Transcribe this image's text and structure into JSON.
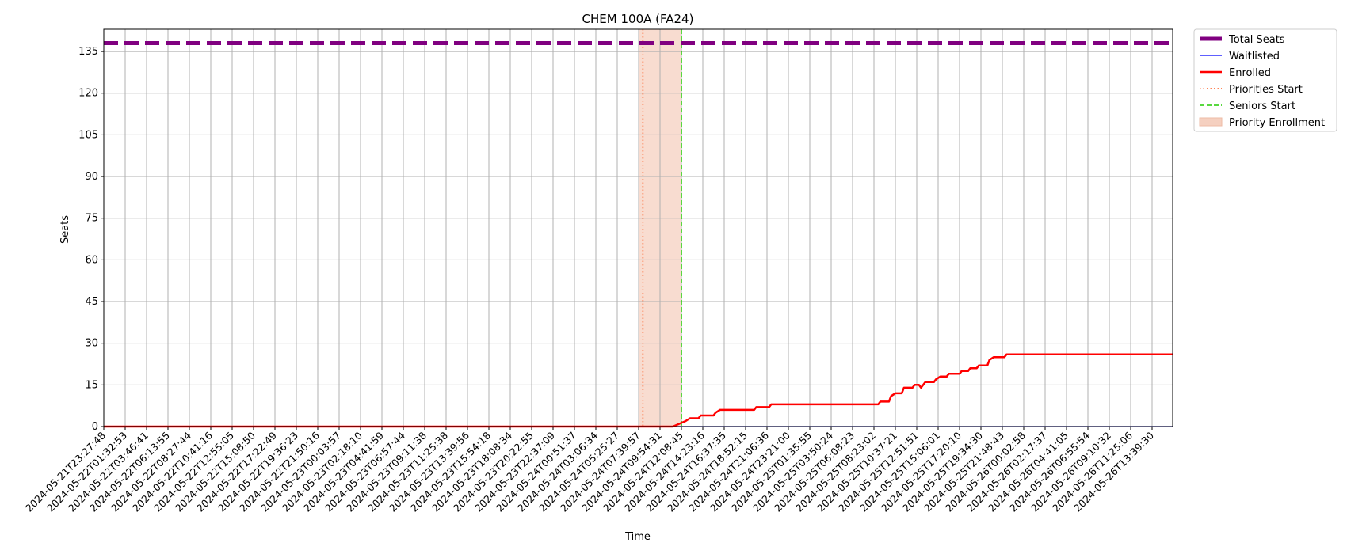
{
  "chart_data": {
    "type": "line",
    "title": "CHEM 100A (FA24)",
    "xlabel": "Time",
    "ylabel": "Seats",
    "ylim": [
      0,
      143
    ],
    "y_ticks": [
      0,
      15,
      30,
      45,
      60,
      75,
      90,
      105,
      120,
      135
    ],
    "x_tick_labels": [
      "2024-05-21T23:27:48",
      "2024-05-22T01:32:53",
      "2024-05-22T03:46:41",
      "2024-05-22T06:13:55",
      "2024-05-22T08:27:44",
      "2024-05-22T10:41:16",
      "2024-05-22T12:55:05",
      "2024-05-22T15:08:50",
      "2024-05-22T17:22:49",
      "2024-05-22T19:36:23",
      "2024-05-22T21:50:16",
      "2024-05-23T00:03:57",
      "2024-05-23T02:18:10",
      "2024-05-23T04:41:59",
      "2024-05-23T06:57:44",
      "2024-05-23T09:11:38",
      "2024-05-23T11:25:38",
      "2024-05-23T13:39:56",
      "2024-05-23T15:54:18",
      "2024-05-23T18:08:34",
      "2024-05-23T20:22:55",
      "2024-05-23T22:37:09",
      "2024-05-24T00:51:37",
      "2024-05-24T03:06:34",
      "2024-05-24T05:25:27",
      "2024-05-24T07:39:57",
      "2024-05-24T09:54:31",
      "2024-05-24T12:08:45",
      "2024-05-24T14:23:16",
      "2024-05-24T16:37:35",
      "2024-05-24T18:52:15",
      "2024-05-24T21:06:36",
      "2024-05-24T23:21:00",
      "2024-05-25T01:35:55",
      "2024-05-25T03:50:24",
      "2024-05-25T06:08:23",
      "2024-05-25T08:23:02",
      "2024-05-25T10:37:21",
      "2024-05-25T12:51:51",
      "2024-05-25T15:06:01",
      "2024-05-25T17:20:10",
      "2024-05-25T19:34:30",
      "2024-05-25T21:48:43",
      "2024-05-26T00:02:58",
      "2024-05-26T02:17:37",
      "2024-05-26T04:41:05",
      "2024-05-26T06:55:54",
      "2024-05-26T09:10:32",
      "2024-05-26T11:25:06",
      "2024-05-26T13:39:30"
    ],
    "grid": true,
    "legend_position": "outside-top-right",
    "series": [
      {
        "name": "Total Seats",
        "style": "dashed-thick",
        "color": "#800080",
        "constant": 138
      },
      {
        "name": "Waitlisted",
        "style": "solid-thin",
        "color": "#0000ff",
        "constant": 0
      },
      {
        "name": "Enrolled",
        "style": "solid",
        "color": "#ff0000",
        "points": [
          [
            0,
            0
          ],
          [
            26.6,
            0
          ],
          [
            26.9,
            1
          ],
          [
            27.2,
            2
          ],
          [
            27.4,
            3
          ],
          [
            27.8,
            3
          ],
          [
            27.9,
            4
          ],
          [
            28.5,
            4
          ],
          [
            28.6,
            5
          ],
          [
            28.8,
            6
          ],
          [
            30.4,
            6
          ],
          [
            30.5,
            7
          ],
          [
            31.1,
            7
          ],
          [
            31.2,
            8
          ],
          [
            36.2,
            8
          ],
          [
            36.3,
            9
          ],
          [
            36.7,
            9
          ],
          [
            36.8,
            11
          ],
          [
            37.0,
            12
          ],
          [
            37.3,
            12
          ],
          [
            37.4,
            14
          ],
          [
            37.8,
            14
          ],
          [
            37.9,
            15
          ],
          [
            38.1,
            15
          ],
          [
            38.2,
            14
          ],
          [
            38.4,
            16
          ],
          [
            38.8,
            16
          ],
          [
            38.9,
            17
          ],
          [
            39.1,
            18
          ],
          [
            39.4,
            18
          ],
          [
            39.5,
            19
          ],
          [
            40.0,
            19
          ],
          [
            40.1,
            20
          ],
          [
            40.4,
            20
          ],
          [
            40.5,
            21
          ],
          [
            40.8,
            21
          ],
          [
            40.9,
            22
          ],
          [
            41.3,
            22
          ],
          [
            41.4,
            24
          ],
          [
            41.6,
            25
          ],
          [
            42.1,
            25
          ],
          [
            42.2,
            26
          ],
          [
            50,
            26
          ]
        ]
      },
      {
        "name": "Priorities Start",
        "style": "dotted",
        "color": "#ff5a1f",
        "x": 25.2
      },
      {
        "name": "Seniors Start",
        "style": "dashed",
        "color": "#22cc00",
        "x": 27.0
      },
      {
        "name": "Priority Enrollment",
        "style": "band",
        "color": "#f5d0c0",
        "x_range": [
          25.0,
          27.0
        ]
      }
    ]
  }
}
